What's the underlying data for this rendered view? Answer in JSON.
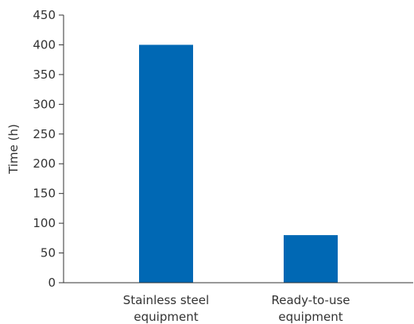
{
  "chart_data": {
    "type": "bar",
    "categories": [
      [
        "Stainless steel",
        "equipment"
      ],
      [
        "Ready-to-use",
        "equipment"
      ]
    ],
    "values": [
      400,
      80
    ],
    "title": "",
    "xlabel": "",
    "ylabel": "Time (h)",
    "ylim": [
      0,
      450
    ],
    "yticks": [
      0,
      50,
      100,
      150,
      200,
      250,
      300,
      350,
      400,
      450
    ],
    "grid": false,
    "legend": "none",
    "bar_color": "#0068b4"
  }
}
